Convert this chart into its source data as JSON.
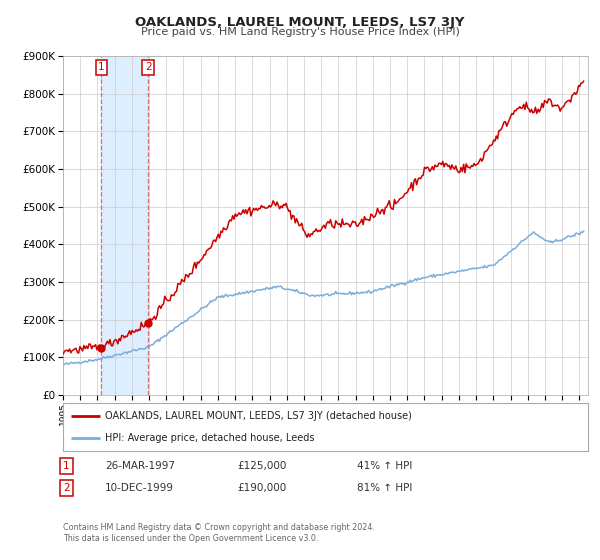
{
  "title": "OAKLANDS, LAUREL MOUNT, LEEDS, LS7 3JY",
  "subtitle": "Price paid vs. HM Land Registry's House Price Index (HPI)",
  "sale1_year": 1997.233,
  "sale1_price": 125000,
  "sale2_year": 1999.942,
  "sale2_price": 190000,
  "property_color": "#cc0000",
  "hpi_color": "#7aaddc",
  "bg_color": "#ffffff",
  "grid_color": "#cccccc",
  "shading_color": "#ddeeff",
  "xmin": 1995.0,
  "xmax": 2025.5,
  "ymin": 0,
  "ymax": 900000,
  "yticks": [
    0,
    100000,
    200000,
    300000,
    400000,
    500000,
    600000,
    700000,
    800000,
    900000
  ],
  "ytick_labels": [
    "£0",
    "£100K",
    "£200K",
    "£300K",
    "£400K",
    "£500K",
    "£600K",
    "£700K",
    "£800K",
    "£900K"
  ],
  "xticks": [
    1995,
    1996,
    1997,
    1998,
    1999,
    2000,
    2001,
    2002,
    2003,
    2004,
    2005,
    2006,
    2007,
    2008,
    2009,
    2010,
    2011,
    2012,
    2013,
    2014,
    2015,
    2016,
    2017,
    2018,
    2019,
    2020,
    2021,
    2022,
    2023,
    2024,
    2025
  ],
  "legend_property": "OAKLANDS, LAUREL MOUNT, LEEDS, LS7 3JY (detached house)",
  "legend_hpi": "HPI: Average price, detached house, Leeds",
  "footer1": "Contains HM Land Registry data © Crown copyright and database right 2024.",
  "footer2": "This data is licensed under the Open Government Licence v3.0.",
  "table_row1_label": "1",
  "table_row1_date": "26-MAR-1997",
  "table_row1_price": "£125,000",
  "table_row1_hpi": "41% ↑ HPI",
  "table_row2_label": "2",
  "table_row2_date": "10-DEC-1999",
  "table_row2_price": "£190,000",
  "table_row2_hpi": "81% ↑ HPI"
}
